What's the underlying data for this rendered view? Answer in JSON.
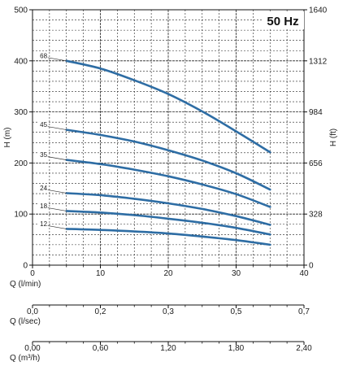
{
  "chart_data": {
    "type": "line",
    "annotation": "50 Hz",
    "colors": {
      "curve": "#2e6da4",
      "grid": "#222222",
      "axis": "#111111"
    },
    "grid": true,
    "left_axis": {
      "label": "H (m)",
      "ylim": [
        0,
        500
      ],
      "ticks": [
        0,
        100,
        200,
        300,
        400,
        500
      ],
      "tick_labels": [
        "0",
        "100",
        "200",
        "300",
        "400",
        "500"
      ]
    },
    "right_axis": {
      "label": "H (ft)",
      "tick_labels": [
        "0",
        "328",
        "656",
        "984",
        "1312",
        "1640"
      ]
    },
    "x_axes": [
      {
        "label": "Q (l/min)",
        "xlim": [
          0,
          40
        ],
        "tick_labels": [
          "0",
          "10",
          "20",
          "30",
          "40"
        ]
      },
      {
        "label": "Q (l/sec)",
        "tick_labels": [
          "0,0",
          "0,2",
          "0,3",
          "0,5",
          "0,7"
        ]
      },
      {
        "label": "Q (m³/h)",
        "tick_labels": [
          "0,00",
          "0,60",
          "1,20",
          "1,80",
          "2,40"
        ]
      }
    ],
    "x": [
      5,
      10,
      15,
      20,
      25,
      30,
      35
    ],
    "series": [
      {
        "name": "68",
        "values": [
          400,
          385,
          362,
          335,
          301,
          262,
          221
        ]
      },
      {
        "name": "45",
        "values": [
          265,
          255,
          242,
          225,
          205,
          180,
          148
        ]
      },
      {
        "name": "35",
        "values": [
          206,
          198,
          187,
          174,
          158,
          139,
          114
        ]
      },
      {
        "name": "24",
        "values": [
          141,
          137,
          130,
          121,
          110,
          96,
          79
        ]
      },
      {
        "name": "18",
        "values": [
          106,
          103,
          98,
          91,
          83,
          73,
          60
        ]
      },
      {
        "name": "12",
        "values": [
          71,
          69,
          66,
          62,
          56,
          49,
          40
        ]
      }
    ]
  }
}
